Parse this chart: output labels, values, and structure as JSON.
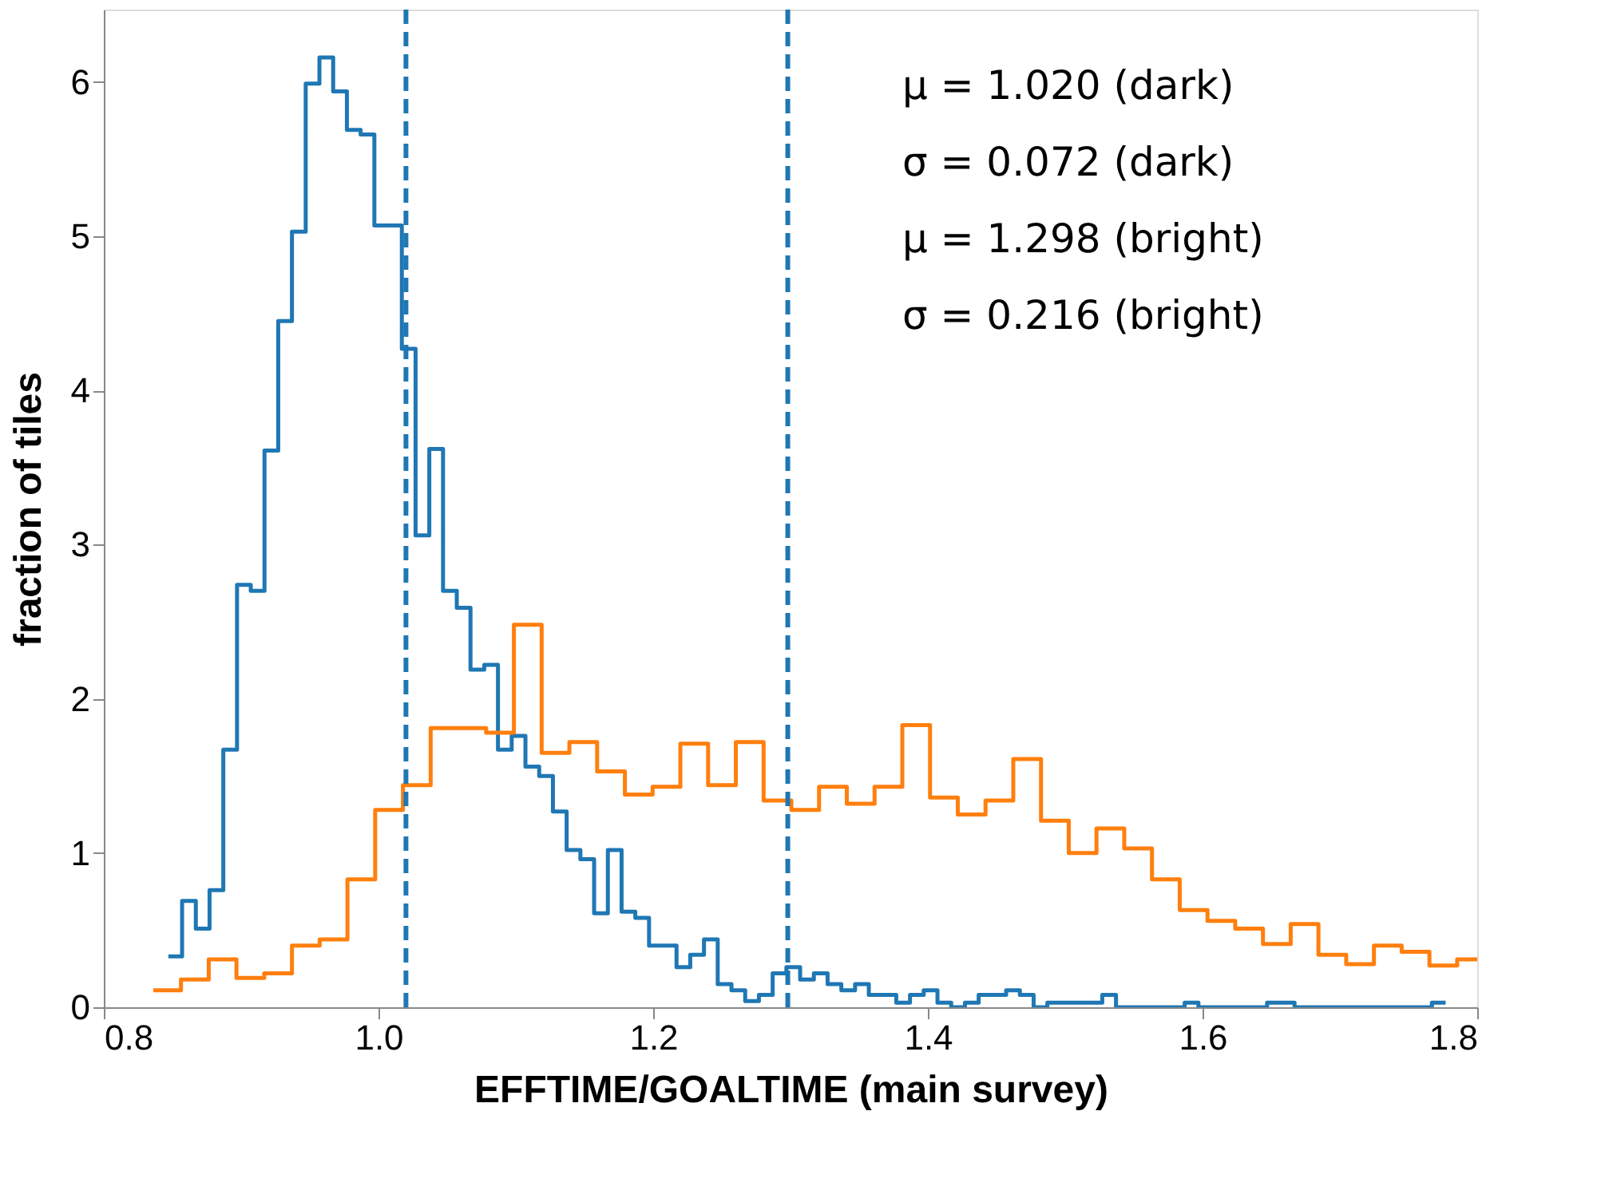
{
  "chart_data": {
    "type": "step",
    "xlabel": "EFFTIME/GOALTIME (main survey)",
    "ylabel": "fraction of tiles",
    "xlim": [
      0.8,
      1.8
    ],
    "xticks": [
      0.8,
      {
        "value": 1.0,
        "label": "1.0"
      },
      1.2,
      1.4,
      1.6,
      1.8
    ],
    "ylim": [
      0,
      6.47
    ],
    "yticks": [
      0,
      1,
      2,
      3,
      4,
      5,
      6
    ],
    "series": [
      {
        "color": "#1f77b4",
        "x": [
          0.847,
          0.857,
          0.867,
          0.877,
          0.887,
          0.897,
          0.907,
          0.917,
          0.927,
          0.937,
          0.947,
          0.957,
          0.967,
          0.977,
          0.987,
          0.997,
          1.007,
          1.017,
          1.027,
          1.037,
          1.047,
          1.057,
          1.067,
          1.077,
          1.087,
          1.097,
          1.107,
          1.117,
          1.127,
          1.137,
          1.147,
          1.157,
          1.167,
          1.177,
          1.187,
          1.197,
          1.207,
          1.217,
          1.227,
          1.237,
          1.247,
          1.257,
          1.267,
          1.277,
          1.287,
          1.297,
          1.307,
          1.317,
          1.327,
          1.337,
          1.347,
          1.357,
          1.367,
          1.377,
          1.387,
          1.397,
          1.407,
          1.417,
          1.427,
          1.437,
          1.447,
          1.457,
          1.467,
          1.477,
          1.487,
          1.497,
          1.507,
          1.517,
          1.527,
          1.537,
          1.547,
          1.557,
          1.567,
          1.577,
          1.587,
          1.597,
          1.607,
          1.617,
          1.627,
          1.637,
          1.647,
          1.657,
          1.667,
          1.677,
          1.687,
          1.697,
          1.707,
          1.717,
          1.727,
          1.737,
          1.747,
          1.757,
          1.767,
          1.777
        ],
        "values": [
          0.33,
          0.69,
          0.51,
          0.76,
          1.67,
          2.74,
          2.7,
          3.61,
          4.45,
          5.03,
          5.99,
          6.16,
          5.94,
          5.69,
          5.66,
          5.07,
          5.07,
          4.27,
          3.06,
          3.62,
          2.7,
          2.59,
          2.19,
          2.22,
          1.67,
          1.76,
          1.56,
          1.5,
          1.27,
          1.02,
          0.96,
          0.61,
          1.02,
          0.62,
          0.58,
          0.4,
          0.4,
          0.26,
          0.34,
          0.44,
          0.15,
          0.11,
          0.04,
          0.08,
          0.22,
          0.26,
          0.18,
          0.22,
          0.15,
          0.11,
          0.15,
          0.08,
          0.08,
          0.03,
          0.08,
          0.11,
          0.03,
          0,
          0.03,
          0.08,
          0.08,
          0.11,
          0.08,
          0,
          0.03,
          0.03,
          0.03,
          0.03,
          0.08,
          0,
          0,
          0,
          0,
          0,
          0.03,
          0,
          0,
          0,
          0,
          0,
          0.03,
          0.03,
          0,
          0,
          0,
          0,
          0,
          0,
          0,
          0,
          0,
          0,
          0.03,
          0.03
        ]
      },
      {
        "color": "#ff7f0e",
        "x": [
          0.836,
          0.8562,
          0.8764,
          0.8966,
          0.9168,
          0.937,
          0.9572,
          0.9774,
          0.9976,
          1.0178,
          1.038,
          1.0582,
          1.0784,
          1.0986,
          1.1188,
          1.139,
          1.1592,
          1.1794,
          1.1996,
          1.2198,
          1.24,
          1.2602,
          1.2804,
          1.3006,
          1.3208,
          1.341,
          1.3612,
          1.3814,
          1.4016,
          1.4218,
          1.442,
          1.4622,
          1.4824,
          1.5026,
          1.5228,
          1.543,
          1.5632,
          1.5834,
          1.6036,
          1.6238,
          1.644,
          1.6642,
          1.6844,
          1.7046,
          1.7248,
          1.745,
          1.7652,
          1.7854,
          1.8
        ],
        "values": [
          0.11,
          0.18,
          0.31,
          0.19,
          0.22,
          0.4,
          0.44,
          0.83,
          1.28,
          1.44,
          1.81,
          1.81,
          1.78,
          2.48,
          1.65,
          1.72,
          1.53,
          1.38,
          1.43,
          1.71,
          1.44,
          1.72,
          1.34,
          1.28,
          1.43,
          1.32,
          1.43,
          1.83,
          1.36,
          1.25,
          1.34,
          1.61,
          1.21,
          1.0,
          1.16,
          1.03,
          0.83,
          0.63,
          0.56,
          0.51,
          0.41,
          0.54,
          0.34,
          0.28,
          0.4,
          0.36,
          0.27,
          0.31,
          0.31
        ]
      }
    ],
    "ref_lines": [
      {
        "axis": "x",
        "value": 1.02,
        "color": "#1f77b4",
        "line_style": "dashed"
      },
      {
        "axis": "x",
        "value": 1.298,
        "color": "#1f77b4",
        "line_style": "dashed"
      }
    ],
    "annotations": [
      "μ = 1.020 (dark)",
      "σ = 0.072 (dark)",
      "μ = 1.298 (bright)",
      "σ = 0.216 (bright)"
    ]
  }
}
